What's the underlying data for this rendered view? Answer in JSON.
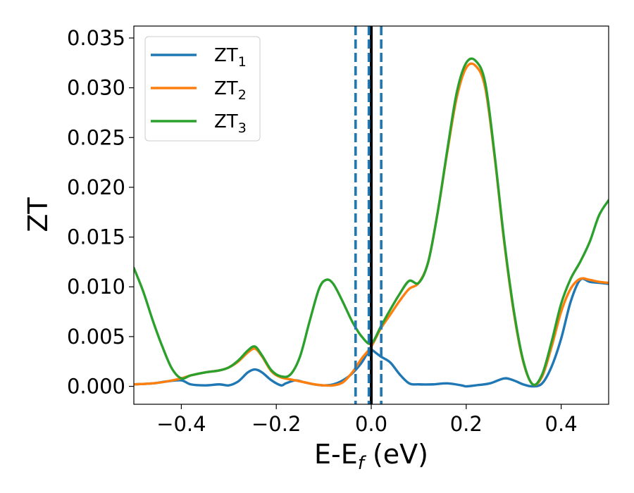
{
  "chart_data": {
    "type": "line",
    "xlabel": "E-E",
    "xlabel_sub": "f",
    "xlabel_unit": "(eV)",
    "ylabel": "ZT",
    "xlim": [
      -0.5,
      0.5
    ],
    "ylim": [
      -0.0018,
      0.0362
    ],
    "xticks": [
      -0.4,
      -0.2,
      0.0,
      0.2,
      0.4
    ],
    "xtick_labels": [
      "−0.4",
      "−0.2",
      "0.0",
      "0.2",
      "0.4"
    ],
    "yticks": [
      0.0,
      0.005,
      0.01,
      0.015,
      0.02,
      0.025,
      0.03,
      0.035
    ],
    "ytick_labels": [
      "0.000",
      "0.005",
      "0.010",
      "0.015",
      "0.020",
      "0.025",
      "0.030",
      "0.035"
    ],
    "grid": false,
    "legend_position": "top-left",
    "vlines": [
      {
        "x": 0.0,
        "style": "solid",
        "color": "#000000"
      },
      {
        "x": -0.033,
        "style": "dashed",
        "color": "#1f77b4"
      },
      {
        "x": -0.005,
        "style": "dashed",
        "color": "#1f77b4"
      },
      {
        "x": 0.021,
        "style": "dashed",
        "color": "#1f77b4"
      }
    ],
    "series": [
      {
        "name": "ZT",
        "name_sub": "1",
        "color": "#1f77b4",
        "x": [
          -0.5,
          -0.46,
          -0.43,
          -0.4,
          -0.38,
          -0.35,
          -0.32,
          -0.3,
          -0.28,
          -0.26,
          -0.245,
          -0.23,
          -0.21,
          -0.19,
          -0.18,
          -0.16,
          -0.14,
          -0.12,
          -0.1,
          -0.08,
          -0.06,
          -0.04,
          -0.02,
          -0.005,
          0.0,
          0.02,
          0.04,
          0.06,
          0.08,
          0.1,
          0.13,
          0.16,
          0.19,
          0.2,
          0.22,
          0.25,
          0.28,
          0.3,
          0.32,
          0.34,
          0.36,
          0.38,
          0.4,
          0.42,
          0.44,
          0.46,
          0.48,
          0.5
        ],
        "y": [
          0.0002,
          0.0003,
          0.0005,
          0.0006,
          0.0002,
          0.0001,
          0.0002,
          0.0001,
          0.0005,
          0.0014,
          0.0017,
          0.0014,
          0.0006,
          0.0001,
          0.0003,
          0.0006,
          0.0004,
          0.0002,
          0.0001,
          0.0002,
          0.0006,
          0.0013,
          0.0024,
          0.0036,
          0.0037,
          0.003,
          0.0024,
          0.0012,
          0.0003,
          0.0002,
          0.0002,
          0.0003,
          0.0001,
          0.0,
          0.0001,
          0.0003,
          0.0008,
          0.0006,
          0.0002,
          0.0,
          0.0003,
          0.002,
          0.0048,
          0.0085,
          0.0107,
          0.0105,
          0.0104,
          0.0103
        ]
      },
      {
        "name": "ZT",
        "name_sub": "2",
        "color": "#ff7f0e",
        "x": [
          -0.5,
          -0.46,
          -0.43,
          -0.4,
          -0.38,
          -0.35,
          -0.32,
          -0.3,
          -0.28,
          -0.26,
          -0.245,
          -0.23,
          -0.21,
          -0.19,
          -0.17,
          -0.14,
          -0.12,
          -0.1,
          -0.08,
          -0.06,
          -0.04,
          -0.02,
          0.0,
          0.02,
          0.04,
          0.06,
          0.08,
          0.1,
          0.12,
          0.14,
          0.16,
          0.18,
          0.2,
          0.22,
          0.24,
          0.26,
          0.28,
          0.3,
          0.32,
          0.34,
          0.36,
          0.38,
          0.4,
          0.42,
          0.44,
          0.46,
          0.48,
          0.5
        ],
        "y": [
          0.0002,
          0.0003,
          0.0005,
          0.0008,
          0.0011,
          0.0014,
          0.0016,
          0.0019,
          0.0025,
          0.0034,
          0.0038,
          0.003,
          0.0015,
          0.0009,
          0.0007,
          0.0004,
          0.0002,
          0.0001,
          0.0001,
          0.0004,
          0.0014,
          0.0028,
          0.004,
          0.0058,
          0.0072,
          0.0086,
          0.0098,
          0.0104,
          0.0125,
          0.0175,
          0.0235,
          0.029,
          0.032,
          0.0322,
          0.03,
          0.023,
          0.0145,
          0.0075,
          0.0025,
          0.0002,
          0.001,
          0.004,
          0.0075,
          0.0098,
          0.0108,
          0.0107,
          0.0105,
          0.0104
        ]
      },
      {
        "name": "ZT",
        "name_sub": "3",
        "color": "#2ca02c",
        "x": [
          -0.5,
          -0.48,
          -0.46,
          -0.44,
          -0.42,
          -0.4,
          -0.38,
          -0.35,
          -0.32,
          -0.3,
          -0.28,
          -0.26,
          -0.245,
          -0.23,
          -0.21,
          -0.19,
          -0.17,
          -0.15,
          -0.13,
          -0.11,
          -0.095,
          -0.08,
          -0.06,
          -0.04,
          -0.02,
          0.0,
          0.02,
          0.04,
          0.06,
          0.08,
          0.1,
          0.12,
          0.14,
          0.16,
          0.18,
          0.2,
          0.22,
          0.24,
          0.26,
          0.28,
          0.3,
          0.32,
          0.34,
          0.36,
          0.38,
          0.4,
          0.42,
          0.44,
          0.46,
          0.48,
          0.5
        ],
        "y": [
          0.0119,
          0.0095,
          0.0066,
          0.004,
          0.0018,
          0.0008,
          0.0011,
          0.0014,
          0.0016,
          0.0019,
          0.0026,
          0.0036,
          0.004,
          0.0031,
          0.0016,
          0.001,
          0.0012,
          0.003,
          0.0065,
          0.0098,
          0.0107,
          0.0103,
          0.0085,
          0.0065,
          0.005,
          0.0043,
          0.006,
          0.0077,
          0.0093,
          0.0106,
          0.0104,
          0.0125,
          0.0175,
          0.0237,
          0.0295,
          0.0325,
          0.0327,
          0.0305,
          0.0232,
          0.0147,
          0.0077,
          0.0026,
          0.0002,
          0.0012,
          0.0045,
          0.0083,
          0.0108,
          0.0125,
          0.0145,
          0.0172,
          0.0187
        ]
      }
    ]
  }
}
